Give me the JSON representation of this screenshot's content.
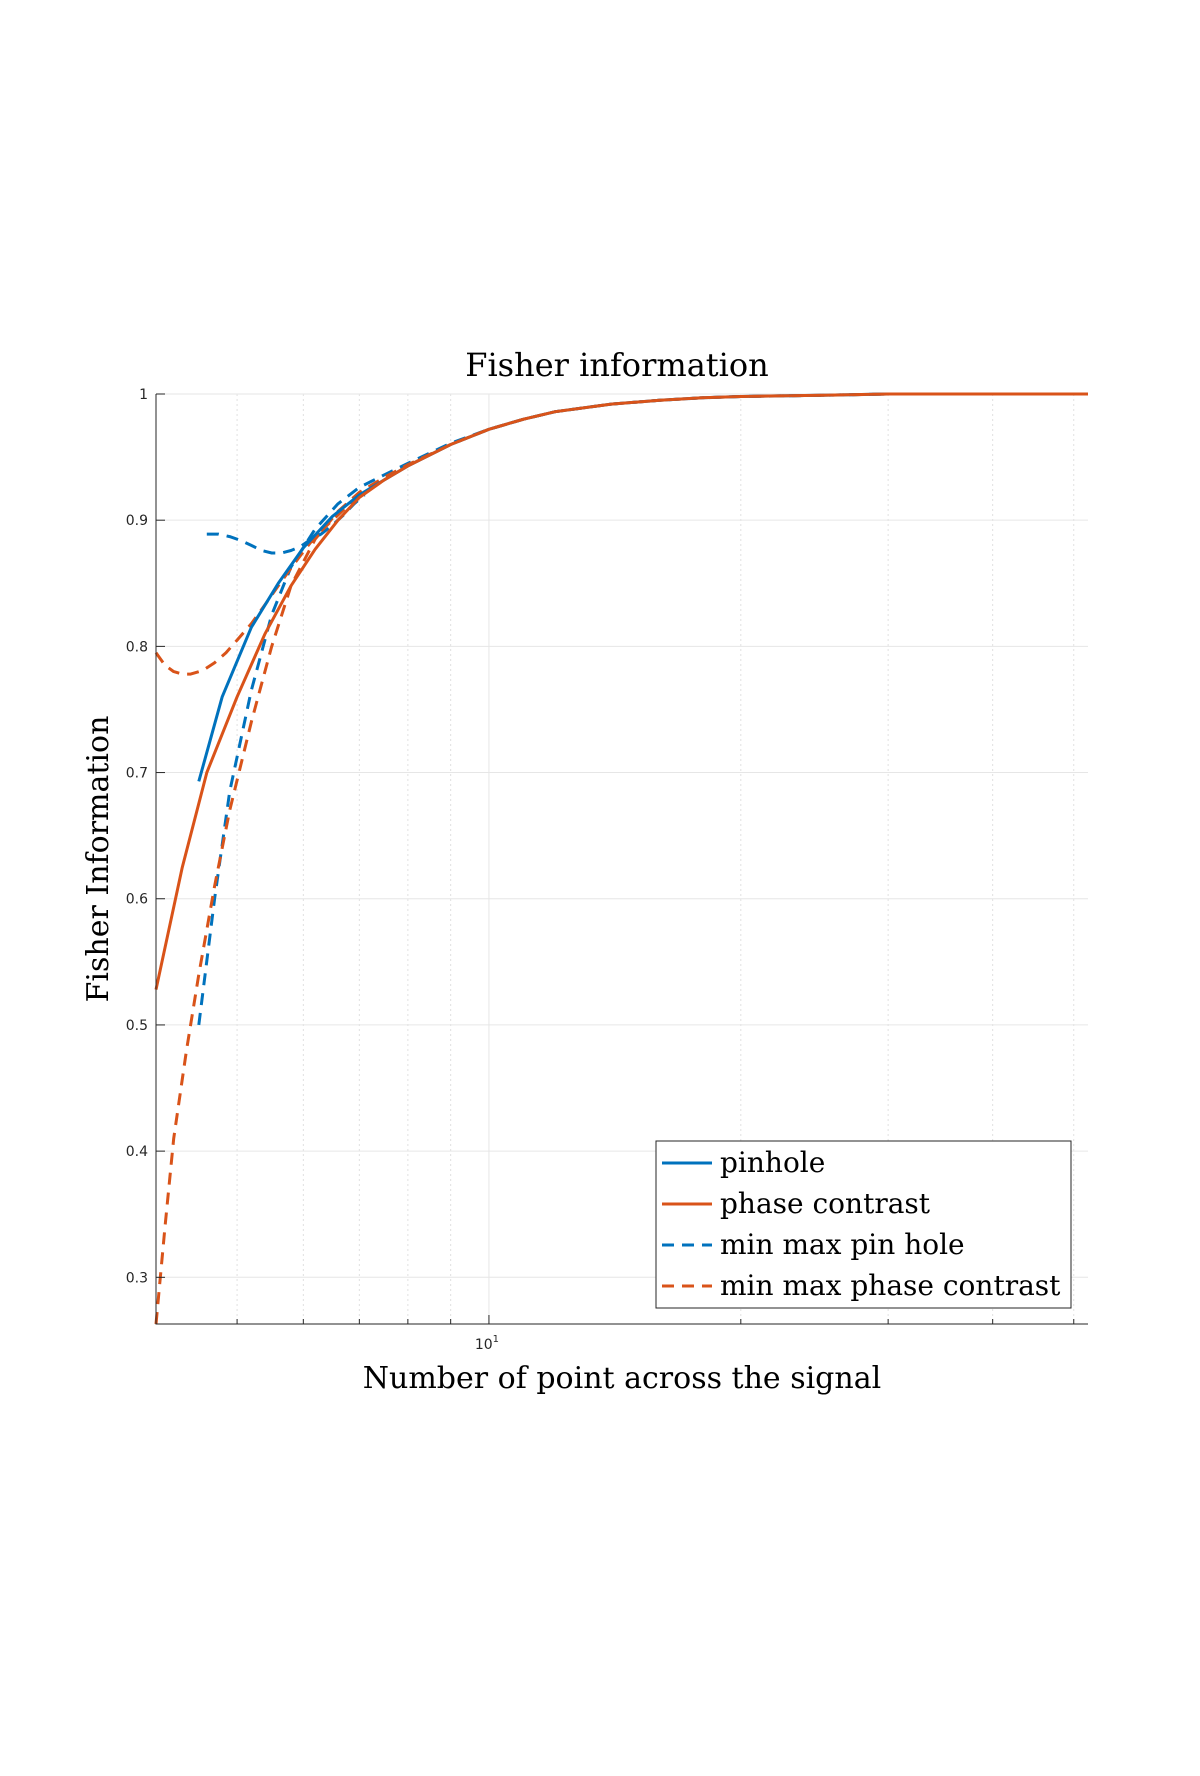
{
  "chart_data": {
    "type": "line",
    "title": "Fisher information",
    "xlabel": "Number of point across the signal",
    "ylabel": "Fisher Information",
    "xscale": "log",
    "xlim": [
      4,
      52
    ],
    "ylim": [
      0.263,
      1.0
    ],
    "xticks": [
      {
        "value": 10,
        "base": "10",
        "exp": "1"
      }
    ],
    "yticks": [
      0.3,
      0.4,
      0.5,
      0.6,
      0.7,
      0.8,
      0.9,
      1
    ],
    "ytick_labels": [
      "0.3",
      "0.4",
      "0.5",
      "0.6",
      "0.7",
      "0.8",
      "0.9",
      "1"
    ],
    "grid": true,
    "legend_position": "bottom-right",
    "series": [
      {
        "name": "pinhole",
        "color": "#0072BD",
        "style": "solid",
        "x": [
          4.5,
          4.8,
          5.2,
          5.6,
          6.0,
          6.5,
          7.0,
          7.5,
          8.0,
          9.0,
          10,
          11,
          12,
          14,
          16,
          18,
          20,
          25,
          30,
          40,
          52
        ],
        "y": [
          0.693,
          0.76,
          0.815,
          0.85,
          0.878,
          0.903,
          0.92,
          0.932,
          0.943,
          0.96,
          0.972,
          0.98,
          0.986,
          0.992,
          0.995,
          0.997,
          0.998,
          0.999,
          1.0,
          1.0,
          1.0
        ]
      },
      {
        "name": "phase contrast",
        "color": "#D95319",
        "style": "solid",
        "x": [
          4.0,
          4.3,
          4.6,
          5.0,
          5.4,
          5.8,
          6.2,
          6.6,
          7.0,
          7.5,
          8.0,
          9.0,
          10,
          11,
          12,
          14,
          16,
          18,
          20,
          25,
          30,
          40,
          52
        ],
        "y": [
          0.528,
          0.625,
          0.7,
          0.76,
          0.81,
          0.848,
          0.877,
          0.9,
          0.918,
          0.932,
          0.943,
          0.96,
          0.972,
          0.98,
          0.986,
          0.992,
          0.995,
          0.997,
          0.998,
          0.999,
          1.0,
          1.0,
          1.0
        ]
      },
      {
        "name": "min max pin hole",
        "color": "#0072BD",
        "style": "dashed",
        "x": [
          4.5,
          4.7,
          4.9,
          5.2,
          5.5,
          5.8,
          6.2,
          6.6,
          7.0,
          7.5,
          8.0,
          9.0,
          10,
          11,
          12,
          14,
          16,
          18,
          20,
          25,
          30,
          40,
          52
        ],
        "y": [
          0.5,
          0.6,
          0.685,
          0.765,
          0.825,
          0.863,
          0.893,
          0.913,
          0.926,
          0.936,
          0.945,
          0.961,
          0.972,
          0.98,
          0.986,
          0.992,
          0.995,
          0.997,
          0.998,
          0.999,
          1.0,
          1.0,
          1.0
        ]
      },
      {
        "name": "min max phase contrast",
        "color": "#D95319",
        "style": "dashed",
        "x": [
          4.0,
          4.1,
          4.2,
          4.35,
          4.5,
          4.7,
          4.9,
          5.2,
          5.5,
          5.8,
          6.2,
          6.6,
          7.0,
          7.5,
          8.0,
          9.0,
          10,
          11,
          12,
          14,
          16,
          18,
          20,
          25,
          30,
          40
        ],
        "y": [
          0.263,
          0.34,
          0.41,
          0.48,
          0.54,
          0.61,
          0.67,
          0.74,
          0.8,
          0.848,
          0.885,
          0.907,
          0.922,
          0.934,
          0.944,
          0.96,
          0.972,
          0.98,
          0.986,
          0.992,
          0.995,
          0.997,
          0.998,
          0.999,
          1.0,
          1.0
        ]
      },
      {
        "name": "",
        "color": "#0072BD",
        "style": "dashed",
        "x": [
          4.6,
          4.75,
          4.9,
          5.05,
          5.2,
          5.35,
          5.5,
          5.65,
          5.8,
          5.95,
          6.1,
          6.3,
          6.5,
          6.7,
          6.9,
          7.1
        ],
        "y": [
          0.889,
          0.889,
          0.887,
          0.884,
          0.88,
          0.876,
          0.874,
          0.874,
          0.876,
          0.879,
          0.884,
          0.889,
          0.896,
          0.904,
          0.913,
          0.92
        ]
      },
      {
        "name": "",
        "color": "#D95319",
        "style": "dashed",
        "x": [
          4.0,
          4.1,
          4.2,
          4.3,
          4.4,
          4.55,
          4.7,
          4.85,
          5.0,
          5.2,
          5.4,
          5.6,
          5.8,
          6.0,
          6.2,
          6.5,
          6.8,
          7.1
        ],
        "y": [
          0.795,
          0.785,
          0.78,
          0.778,
          0.778,
          0.781,
          0.787,
          0.795,
          0.805,
          0.818,
          0.833,
          0.848,
          0.862,
          0.875,
          0.887,
          0.9,
          0.912,
          0.922
        ]
      }
    ]
  }
}
